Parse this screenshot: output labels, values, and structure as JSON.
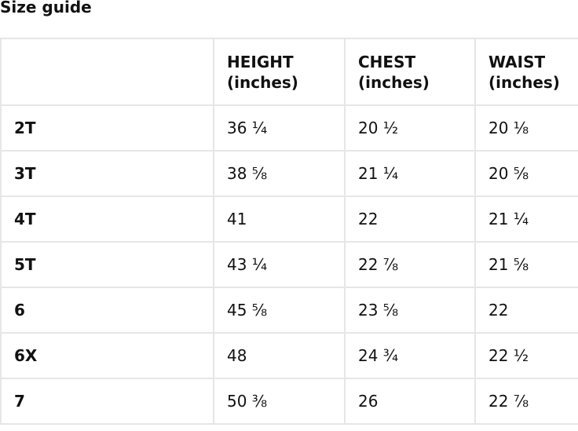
{
  "title": "Size guide",
  "table": {
    "headers": [
      {
        "label": "",
        "unit": ""
      },
      {
        "label": "HEIGHT",
        "unit": "(inches)"
      },
      {
        "label": "CHEST",
        "unit": "(inches)"
      },
      {
        "label": "WAIST",
        "unit": "(inches)"
      }
    ],
    "rows": [
      [
        "2T",
        "36 ¼",
        "20 ½",
        "20 ⅛"
      ],
      [
        "3T",
        "38 ⅝",
        "21 ¼",
        "20 ⅝"
      ],
      [
        "4T",
        "41",
        "22",
        "21 ¼"
      ],
      [
        "5T",
        "43 ¼",
        "22 ⅞",
        "21 ⅝"
      ],
      [
        "6",
        "45 ⅝",
        "23 ⅝",
        "22"
      ],
      [
        "6X",
        "48",
        "24 ¾",
        "22 ½"
      ],
      [
        "7",
        "50 ⅜",
        "26",
        "22 ⅞"
      ]
    ]
  }
}
